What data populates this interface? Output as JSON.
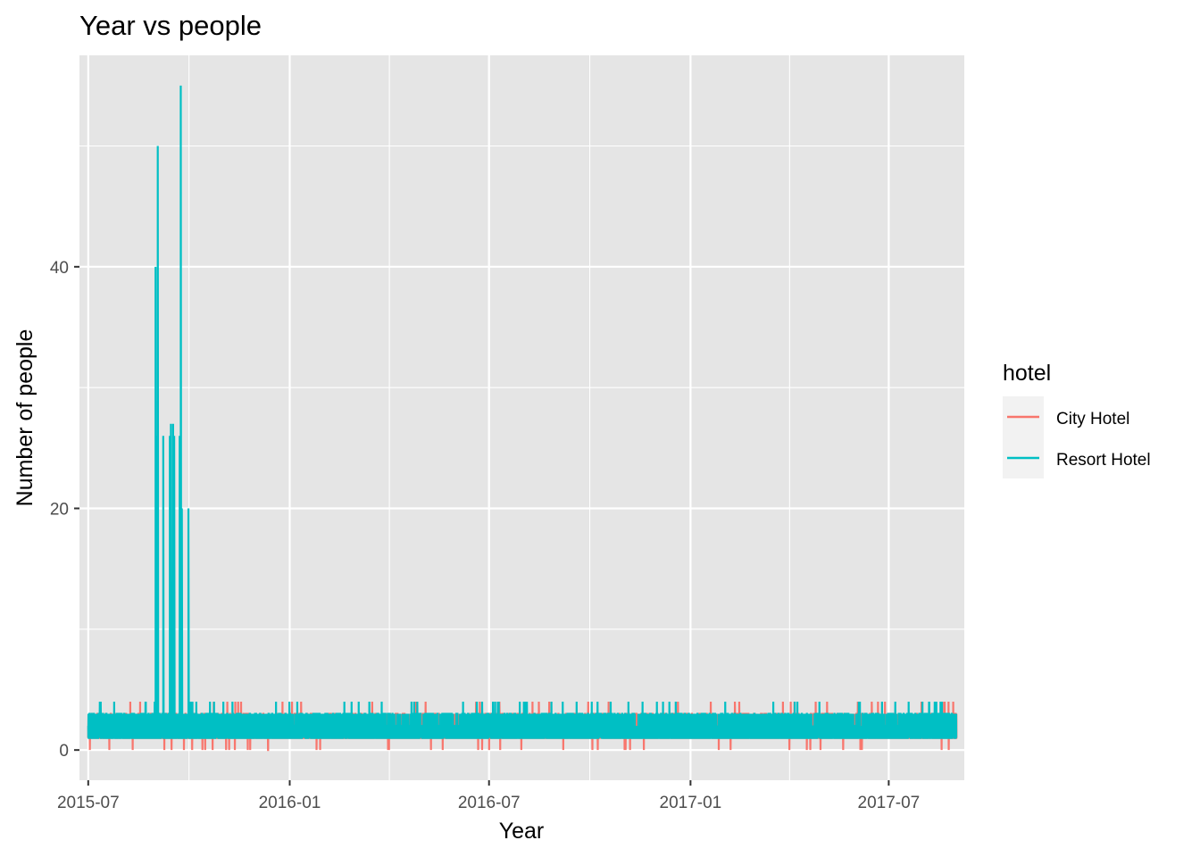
{
  "chart_data": {
    "type": "line",
    "title": "Year vs people",
    "xlabel": "Year",
    "ylabel": "Number of people",
    "x_range": [
      "2015-06-23",
      "2017-09-08"
    ],
    "ylim": [
      -2.5,
      57.5
    ],
    "x_ticks": [
      "2015-07",
      "2016-01",
      "2016-07",
      "2017-01",
      "2017-07"
    ],
    "y_ticks": [
      0,
      20,
      40
    ],
    "grid": true,
    "background": "#e5e5e5",
    "grid_color": "#ffffff",
    "legend": {
      "title": "hotel",
      "position": "right",
      "entries": [
        "City Hotel",
        "Resort Hotel"
      ]
    },
    "series": [
      {
        "name": "City Hotel",
        "color": "#F8766D",
        "date_range": [
          "2015-07-01",
          "2017-08-31"
        ],
        "baseline_low": 1,
        "baseline_high": 3,
        "occasional_values": [
          0,
          4
        ],
        "spikes": [
          {
            "x": "2016-01-06",
            "y": 3
          },
          {
            "x": "2016-07-10",
            "y": 4
          },
          {
            "x": "2016-08-15",
            "y": 4
          },
          {
            "x": "2016-12-20",
            "y": 4
          },
          {
            "x": "2017-02-10",
            "y": 4
          },
          {
            "x": "2017-06-15",
            "y": 4
          },
          {
            "x": "2017-08-20",
            "y": 4
          }
        ]
      },
      {
        "name": "Resort Hotel",
        "color": "#00BFC4",
        "date_range": [
          "2015-07-01",
          "2017-08-31"
        ],
        "baseline_low": 1,
        "baseline_high": 3,
        "occasional_values": [
          4
        ],
        "spikes": [
          {
            "x": "2015-08-31",
            "y": 40
          },
          {
            "x": "2015-09-01",
            "y": 26
          },
          {
            "x": "2015-09-02",
            "y": 50
          },
          {
            "x": "2015-09-07",
            "y": 26
          },
          {
            "x": "2015-09-13",
            "y": 26
          },
          {
            "x": "2015-09-14",
            "y": 27
          },
          {
            "x": "2015-09-16",
            "y": 27
          },
          {
            "x": "2015-09-17",
            "y": 26
          },
          {
            "x": "2015-09-22",
            "y": 26
          },
          {
            "x": "2015-09-23",
            "y": 55
          },
          {
            "x": "2015-09-24",
            "y": 20
          },
          {
            "x": "2015-09-30",
            "y": 20
          }
        ]
      }
    ]
  }
}
